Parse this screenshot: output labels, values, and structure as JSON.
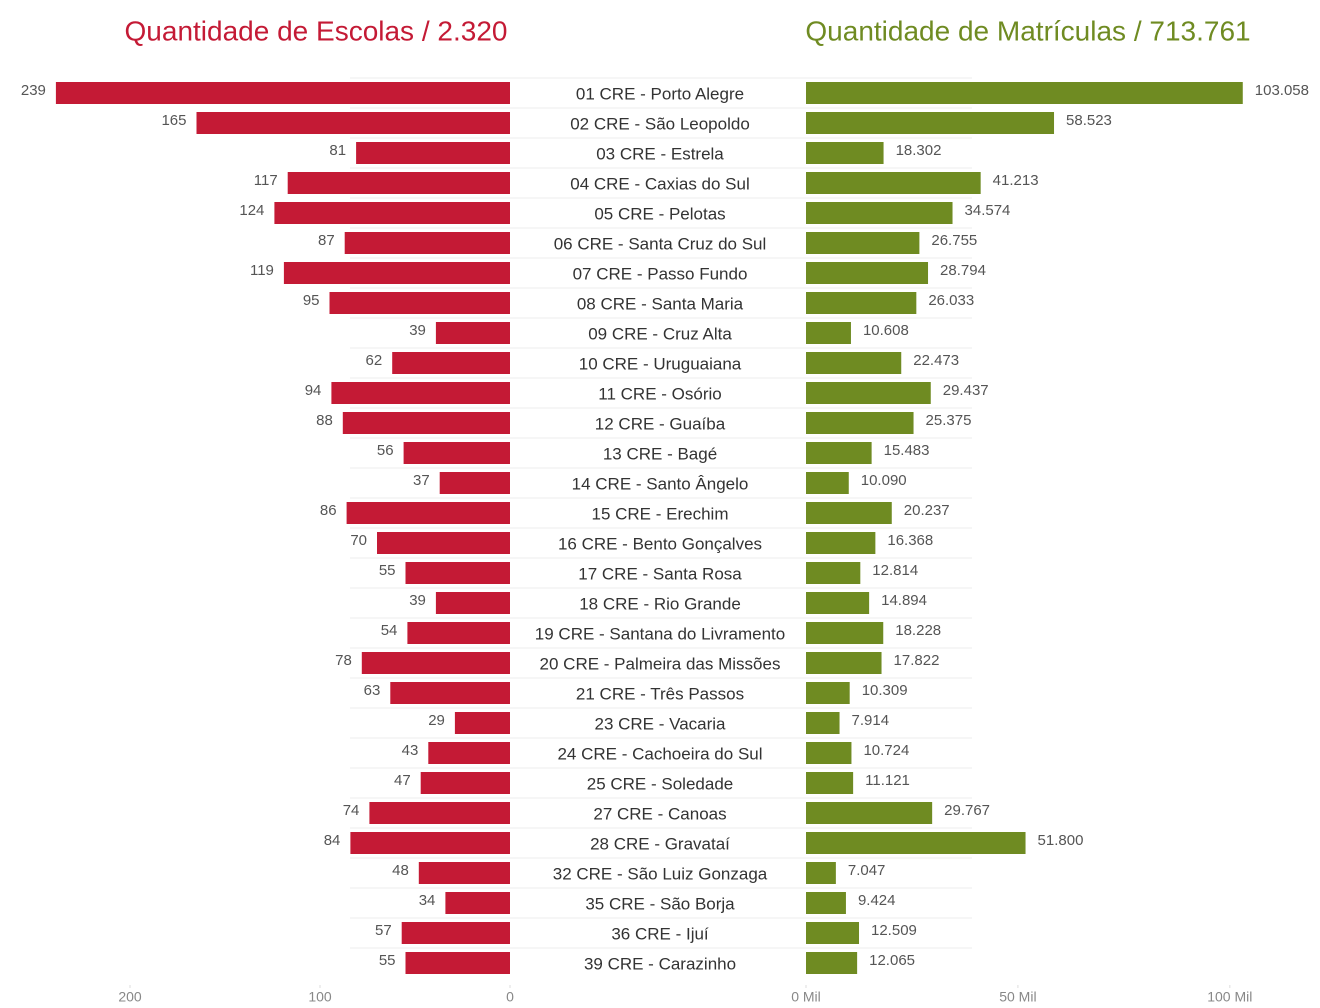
{
  "chart_data": [
    {
      "type": "bar",
      "title": "Quantidade de Escolas / 2.320",
      "color": "#c41a35",
      "reversed": true,
      "categories": [
        "01 CRE - Porto Alegre",
        "02 CRE - São Leopoldo",
        "03 CRE - Estrela",
        "04 CRE - Caxias do Sul",
        "05 CRE - Pelotas",
        "06 CRE - Santa Cruz do Sul",
        "07 CRE - Passo Fundo",
        "08 CRE - Santa Maria",
        "09 CRE - Cruz Alta",
        "10 CRE - Uruguaiana",
        "11 CRE - Osório",
        "12 CRE - Guaíba",
        "13 CRE - Bagé",
        "14 CRE - Santo Ângelo",
        "15 CRE - Erechim",
        "16 CRE - Bento Gonçalves",
        "17 CRE - Santa Rosa",
        "18 CRE - Rio Grande",
        "19 CRE - Santana do Livramento",
        "20 CRE - Palmeira das Missões",
        "21 CRE - Três Passos",
        "23 CRE - Vacaria",
        "24 CRE - Cachoeira do Sul",
        "25 CRE - Soledade",
        "27 CRE - Canoas",
        "28 CRE - Gravataí",
        "32 CRE - São Luiz Gonzaga",
        "35 CRE - São Borja",
        "36 CRE - Ijuí",
        "39 CRE - Carazinho"
      ],
      "values": [
        239,
        165,
        81,
        117,
        124,
        87,
        119,
        95,
        39,
        62,
        94,
        88,
        56,
        37,
        86,
        70,
        55,
        39,
        54,
        78,
        63,
        29,
        43,
        47,
        74,
        84,
        48,
        34,
        57,
        55
      ],
      "xlim": [
        0,
        250
      ],
      "xticks": [
        0,
        100,
        200
      ]
    },
    {
      "type": "bar",
      "title": "Quantidade de Matrículas / 713.761",
      "color": "#6f8b22",
      "reversed": false,
      "values": [
        103058,
        58523,
        18302,
        41213,
        34574,
        26755,
        28794,
        26033,
        10608,
        22473,
        29437,
        25375,
        15483,
        10090,
        20237,
        16368,
        12814,
        14894,
        18228,
        17822,
        10309,
        7914,
        10724,
        11121,
        29767,
        51800,
        7047,
        9424,
        12509,
        12065
      ],
      "value_labels": [
        "103.058",
        "58.523",
        "18.302",
        "41.213",
        "34.574",
        "26.755",
        "28.794",
        "26.033",
        "10.608",
        "22.473",
        "29.437",
        "25.375",
        "15.483",
        "10.090",
        "20.237",
        "16.368",
        "12.814",
        "14.894",
        "18.228",
        "17.822",
        "10.309",
        "7.914",
        "10.724",
        "11.121",
        "29.767",
        "51.800",
        "7.047",
        "9.424",
        "12.509",
        "12.065"
      ],
      "xlim": [
        0,
        105000
      ],
      "xticks": [
        {
          "value": 0,
          "label": "0 Mil"
        },
        {
          "value": 50000,
          "label": "50 Mil"
        },
        {
          "value": 100000,
          "label": "100 Mil"
        }
      ]
    }
  ]
}
